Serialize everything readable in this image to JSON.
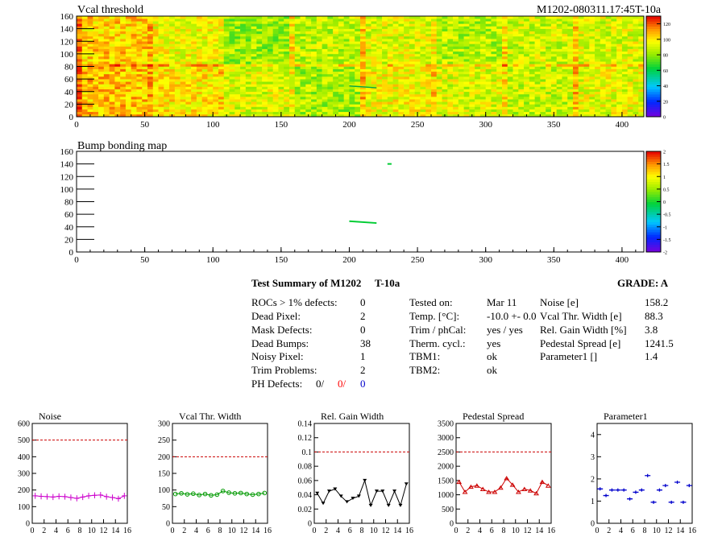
{
  "header": {
    "left_title": "Vcal threshold",
    "right_title": "M1202-080311.17:45T-10a"
  },
  "chart_data": [
    {
      "type": "heatmap",
      "title": "Vcal threshold",
      "xlim": [
        0,
        416
      ],
      "ylim": [
        0,
        160
      ],
      "x_ticks": [
        "0",
        "50",
        "100",
        "150",
        "200",
        "250",
        "300",
        "350",
        "400"
      ],
      "y_ticks": [
        "0",
        "20",
        "40",
        "60",
        "80",
        "100",
        "120",
        "140",
        "160"
      ],
      "z_range": [
        0,
        130
      ],
      "z_ticks": [
        "0",
        "20",
        "40",
        "60",
        "80",
        "100",
        "120"
      ],
      "roc_means_row_low": [
        106,
        100,
        92,
        84,
        96,
        92,
        88,
        94
      ],
      "roc_means_row_high": [
        104,
        96,
        82,
        88,
        92,
        86,
        90,
        92
      ],
      "hot_column_x": [
        52,
        104,
        156,
        208,
        260,
        312,
        364
      ],
      "hot_row_y": 80
    },
    {
      "type": "heatmap",
      "title": "Bump bonding map",
      "xlim": [
        0,
        416
      ],
      "ylim": [
        0,
        160
      ],
      "x_ticks": [
        "0",
        "50",
        "100",
        "150",
        "200",
        "250",
        "300",
        "350",
        "400"
      ],
      "y_ticks": [
        "0",
        "20",
        "40",
        "60",
        "80",
        "100",
        "120",
        "140",
        "160"
      ],
      "z_range": [
        -2,
        2
      ],
      "z_ticks": [
        "2",
        "1.5",
        "1",
        "0.5",
        "0",
        "-0.5",
        "-1",
        "-1.5",
        "-2"
      ],
      "defects": [
        {
          "x": [
            200,
            220
          ],
          "y": [
            49,
            46
          ]
        },
        {
          "x": [
            228,
            231
          ],
          "y": [
            140,
            140
          ]
        }
      ]
    },
    {
      "type": "line",
      "title": "Noise",
      "x": [
        0,
        1,
        2,
        3,
        4,
        5,
        6,
        7,
        8,
        9,
        10,
        11,
        12,
        13,
        14,
        15
      ],
      "values": [
        165,
        162,
        160,
        158,
        162,
        160,
        155,
        150,
        158,
        165,
        168,
        170,
        160,
        155,
        148,
        165
      ],
      "errors": [
        18,
        18,
        18,
        18,
        18,
        18,
        18,
        18,
        18,
        18,
        18,
        18,
        18,
        18,
        18,
        18
      ],
      "ylim": [
        0,
        600
      ],
      "xlim": [
        0,
        16
      ],
      "threshold": 500,
      "y_ticks": [
        "0",
        "100",
        "200",
        "300",
        "400",
        "500",
        "600"
      ],
      "marker": "plus",
      "color": "#cc00cc"
    },
    {
      "type": "line",
      "title": "Vcal Thr. Width",
      "x": [
        0,
        1,
        2,
        3,
        4,
        5,
        6,
        7,
        8,
        9,
        10,
        11,
        12,
        13,
        14,
        15
      ],
      "values": [
        88,
        90,
        87,
        89,
        85,
        88,
        84,
        86,
        97,
        92,
        90,
        91,
        88,
        86,
        88,
        91
      ],
      "ylim": [
        0,
        300
      ],
      "xlim": [
        0,
        16
      ],
      "threshold": 200,
      "y_ticks": [
        "0",
        "50",
        "100",
        "150",
        "200",
        "250",
        "300"
      ],
      "marker": "circle",
      "color": "#009900"
    },
    {
      "type": "line",
      "title": "Rel. Gain Width",
      "x": [
        0,
        1,
        2,
        3,
        4,
        5,
        6,
        7,
        8,
        9,
        10,
        11,
        12,
        13,
        14,
        15
      ],
      "values": [
        0.042,
        0.028,
        0.045,
        0.048,
        0.038,
        0.03,
        0.035,
        0.038,
        0.06,
        0.025,
        0.045,
        0.045,
        0.025,
        0.045,
        0.025,
        0.055
      ],
      "ylim": [
        0,
        0.14
      ],
      "xlim": [
        0,
        16
      ],
      "threshold": 0.1,
      "y_ticks": [
        "0",
        "0.02",
        "0.04",
        "0.06",
        "0.08",
        "0.1",
        "0.12",
        "0.14"
      ],
      "marker": "triangle-down",
      "color": "#000000"
    },
    {
      "type": "line",
      "title": "Pedestal Spread",
      "x": [
        0,
        1,
        2,
        3,
        4,
        5,
        6,
        7,
        8,
        9,
        10,
        11,
        12,
        13,
        14,
        15
      ],
      "values": [
        1450,
        1100,
        1280,
        1320,
        1200,
        1100,
        1100,
        1250,
        1580,
        1350,
        1100,
        1200,
        1150,
        1050,
        1450,
        1320
      ],
      "ylim": [
        0,
        3500
      ],
      "xlim": [
        0,
        16
      ],
      "threshold": 2500,
      "y_ticks": [
        "0",
        "500",
        "1000",
        "1500",
        "2000",
        "2500",
        "3000",
        "3500"
      ],
      "marker": "triangle-up",
      "color": "#cc0000"
    },
    {
      "type": "scatter",
      "title": "Parameter1",
      "x": [
        0,
        1,
        2,
        3,
        4,
        5,
        6,
        7,
        8,
        9,
        10,
        11,
        12,
        13,
        14,
        15
      ],
      "values": [
        1.55,
        1.25,
        1.5,
        1.5,
        1.5,
        1.1,
        1.4,
        1.5,
        2.15,
        0.95,
        1.5,
        1.7,
        0.95,
        1.85,
        0.95,
        1.7
      ],
      "ylim": [
        0,
        4.5
      ],
      "xlim": [
        0,
        16
      ],
      "y_ticks": [
        "0",
        "1",
        "2",
        "3",
        "4"
      ],
      "marker": "hbar",
      "color": "#0000cc"
    }
  ],
  "x_ticks_small": [
    "0",
    "2",
    "4",
    "6",
    "8",
    "10",
    "12",
    "14",
    "16"
  ],
  "summary": {
    "title": "Test Summary of M1202",
    "temp_label": "T-10a",
    "grade": "GRADE:  A",
    "col1_labels": [
      "ROCs > 1% defects:",
      "Dead Pixel:",
      "Mask Defects:",
      "Dead Bumps:",
      "Noisy Pixel:",
      "Trim Problems:"
    ],
    "col1_values": [
      "0",
      "2",
      "0",
      "38",
      "1",
      "2"
    ],
    "ph_label": "PH Defects:",
    "ph_values": [
      "0/",
      "0/",
      "0"
    ],
    "col2_labels": [
      "Tested on:",
      "Temp. [°C]:",
      "Trim / phCal:",
      "Therm. cycl.:",
      "TBM1:",
      "TBM2:"
    ],
    "col2_values": [
      "Mar 11",
      "-10.0 +- 0.0",
      "yes / yes",
      "yes",
      "ok",
      "ok"
    ],
    "col3_labels": [
      "Noise [e]",
      "Vcal Thr. Width [e]",
      "Rel. Gain Width [%]",
      "Pedestal Spread [e]",
      "Parameter1 []"
    ],
    "col3_values": [
      "158.2",
      "88.3",
      "3.8",
      "1241.5",
      "1.4"
    ]
  },
  "colors": {
    "ph_red": "#ff0000",
    "ph_blue": "#0000cc",
    "threshold_line": "#cc0000"
  }
}
